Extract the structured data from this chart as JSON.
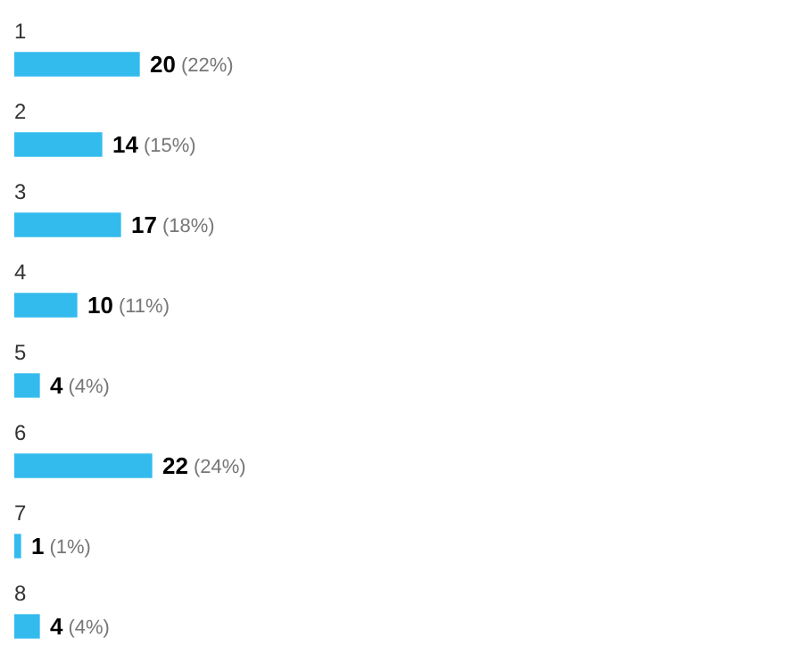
{
  "chart_data": {
    "type": "bar",
    "orientation": "horizontal",
    "categories": [
      "1",
      "2",
      "3",
      "4",
      "5",
      "6",
      "7",
      "8"
    ],
    "values": [
      20,
      14,
      17,
      10,
      4,
      22,
      1,
      4
    ],
    "value_labels": [
      "20 (22%)",
      "14 (15%)",
      "17 (18%)",
      "10 (11%)",
      "4 (4%)",
      "22 (24%)",
      "1 (1%)",
      "4 (4%)"
    ],
    "color": "#33bbee",
    "legend": false
  }
}
